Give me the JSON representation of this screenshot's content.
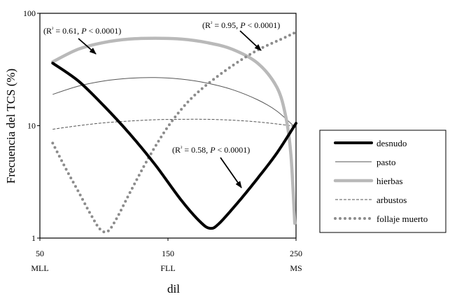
{
  "chart_data": {
    "type": "line",
    "title": "",
    "xlabel": "dil",
    "ylabel": "Frecuencia del TCS (%)",
    "xlim": [
      50,
      250
    ],
    "ylim": [
      1,
      100
    ],
    "yscale": "log",
    "x_ticks": [
      50,
      150,
      250
    ],
    "y_ticks": [
      1,
      10,
      100
    ],
    "x_category_labels": [
      {
        "x": 50,
        "label": "MLL"
      },
      {
        "x": 150,
        "label": "FLL"
      },
      {
        "x": 250,
        "label": "MS"
      }
    ],
    "grid": false,
    "legend_position": "right",
    "series": [
      {
        "name": "desnudo",
        "style": "solid-thick",
        "color": "#000000",
        "x": [
          60,
          80,
          100,
          120,
          140,
          160,
          175,
          183,
          190,
          205,
          220,
          235,
          250
        ],
        "y": [
          36,
          25,
          15,
          8.5,
          4.5,
          2.2,
          1.4,
          1.22,
          1.35,
          2.1,
          3.4,
          5.7,
          10.5
        ]
      },
      {
        "name": "pasto",
        "style": "solid-thin",
        "color": "#555555",
        "x": [
          60,
          80,
          100,
          120,
          140,
          160,
          180,
          200,
          220,
          235,
          250
        ],
        "y": [
          19,
          22.5,
          25,
          26.4,
          26.8,
          26,
          24,
          21,
          17,
          13.5,
          9.5
        ]
      },
      {
        "name": "hierbas",
        "style": "solid-thick-light",
        "color": "#b9b9b9",
        "x": [
          60,
          80,
          100,
          120,
          140,
          160,
          180,
          200,
          220,
          235,
          242,
          246,
          249
        ],
        "y": [
          37,
          48,
          55,
          59,
          60,
          59,
          55,
          48,
          36,
          22,
          12,
          5.5,
          1.35
        ]
      },
      {
        "name": "arbustos",
        "style": "dashed",
        "color": "#555555",
        "x": [
          60,
          80,
          100,
          120,
          140,
          160,
          180,
          200,
          220,
          240,
          250
        ],
        "y": [
          9.3,
          10,
          10.6,
          11,
          11.3,
          11.4,
          11.4,
          11.2,
          10.8,
          10.2,
          9.8
        ]
      },
      {
        "name": "follaje muerto",
        "style": "dotted",
        "color": "#8c8c8c",
        "x": [
          60,
          70,
          80,
          90,
          97,
          103,
          110,
          120,
          135,
          150,
          165,
          180,
          200,
          220,
          240,
          250
        ],
        "y": [
          7,
          4.2,
          2.6,
          1.6,
          1.2,
          1.15,
          1.5,
          2.5,
          5.2,
          9.8,
          16,
          23,
          34,
          47,
          60,
          68
        ]
      }
    ],
    "annotations": [
      {
        "text": "(R² = 0.61, P < 0.0001)",
        "target_series": "hierbas"
      },
      {
        "text": "(R² = 0.95, P < 0.0001)",
        "target_series": "follaje muerto"
      },
      {
        "text": "(R² = 0.58, P < 0.0001)",
        "target_series": "desnudo"
      }
    ]
  }
}
